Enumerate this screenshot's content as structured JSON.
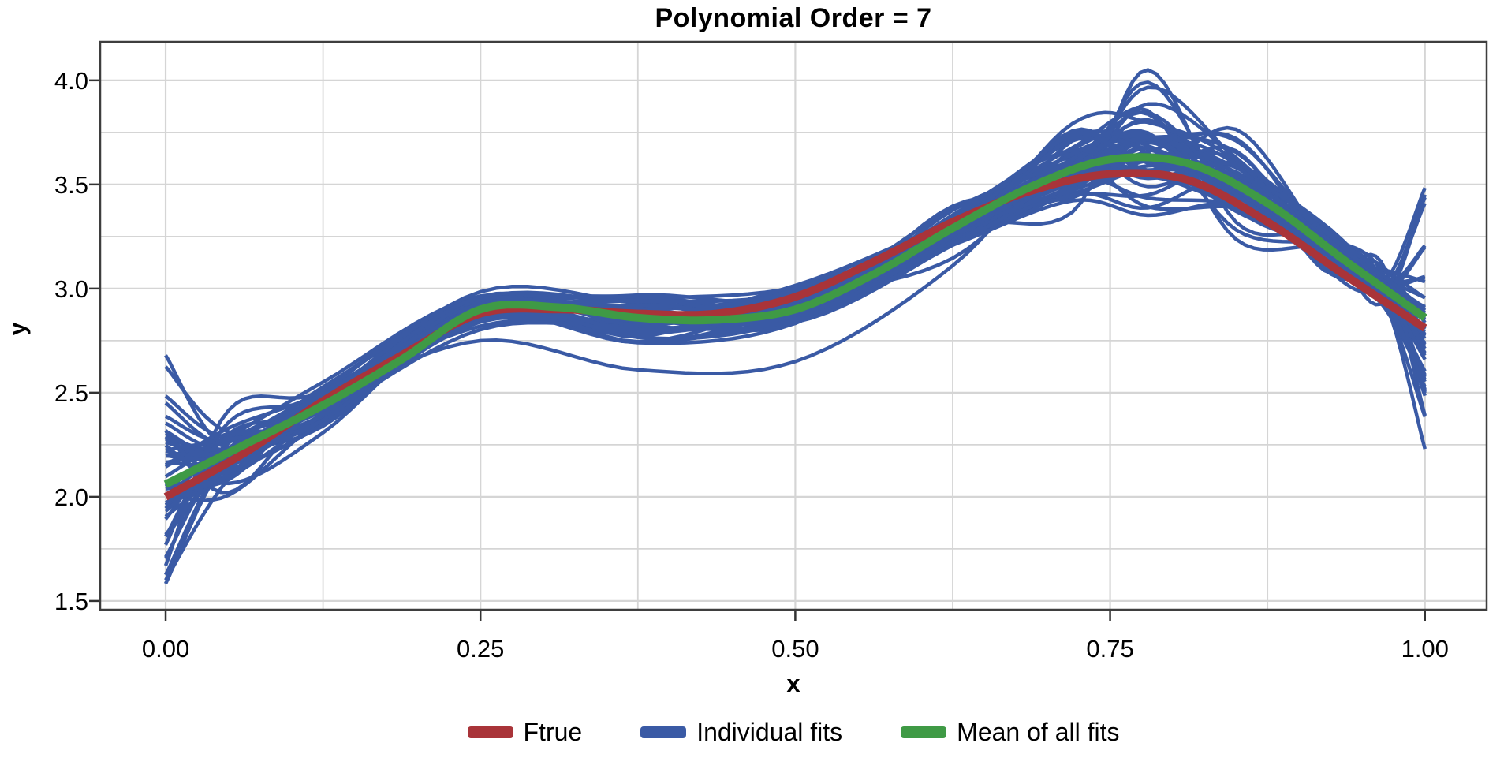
{
  "figure": {
    "title": "Polynomial Order = 7",
    "x_axis_label": "x",
    "y_axis_label": "y"
  },
  "chart_data": {
    "type": "line",
    "title": "Polynomial Order = 7",
    "xlabel": "x",
    "ylabel": "y",
    "xlim": [
      -0.052,
      1.049
    ],
    "ylim": [
      1.458,
      4.185
    ],
    "grid": true,
    "grid_color": "#D5D5D5",
    "panel_border_color": "#3E3E3E",
    "tick_color": "#333333",
    "text_color": "#000000",
    "legend_position": "bottom-center",
    "x_ticks": {
      "values": [
        0,
        0.25,
        0.5,
        0.75,
        1.0
      ],
      "labels": [
        "0.00",
        "0.25",
        "0.50",
        "0.75",
        "1.00"
      ]
    },
    "y_ticks": {
      "values": [
        1.5,
        2.0,
        2.5,
        3.0,
        3.5,
        4.0
      ],
      "labels": [
        "1.5",
        "2.0",
        "2.5",
        "3.0",
        "3.5",
        "4.0"
      ]
    },
    "x_minor_gridlines": [
      0.125,
      0.375,
      0.625,
      0.875
    ],
    "y_minor_gridlines": [
      1.75,
      2.25,
      2.75,
      3.25,
      3.75
    ],
    "x_samples": [
      0,
      0.0625,
      0.125,
      0.1875,
      0.25,
      0.3125,
      0.375,
      0.4375,
      0.5,
      0.5625,
      0.625,
      0.6875,
      0.75,
      0.8125,
      0.875,
      0.9375,
      1.0
    ],
    "series": [
      {
        "name": "Ftrue",
        "color": "#A93439",
        "line_width": 10,
        "values": [
          2.0,
          2.21,
          2.46,
          2.68,
          2.88,
          2.9,
          2.88,
          2.88,
          2.96,
          3.13,
          3.32,
          3.47,
          3.55,
          3.52,
          3.32,
          3.06,
          2.81
        ]
      },
      {
        "name": "Mean of all fits",
        "color": "#3F9A45",
        "line_width": 10,
        "values": [
          2.06,
          2.25,
          2.44,
          2.66,
          2.9,
          2.91,
          2.86,
          2.85,
          2.9,
          3.07,
          3.29,
          3.49,
          3.62,
          3.6,
          3.41,
          3.13,
          2.86
        ]
      },
      {
        "name": "Individual fits",
        "color": "#3A5AA5",
        "line_width": 4.5,
        "count": 50,
        "seed": 20407,
        "spread_control_x": [
          0,
          0.05,
          0.125,
          0.25,
          0.375,
          0.5,
          0.625,
          0.72,
          0.78,
          0.85,
          0.92,
          0.965,
          1.0
        ],
        "spread_control_sd": [
          0.24,
          0.085,
          0.055,
          0.05,
          0.05,
          0.055,
          0.06,
          0.1,
          0.14,
          0.11,
          0.065,
          0.05,
          0.26
        ],
        "sd_clamp": 2.4,
        "outliers": [
          {
            "curve": 4,
            "point": 8,
            "value": 0.42
          },
          {
            "curve": 9,
            "point": 8,
            "value": 0.36
          },
          {
            "curve": 17,
            "point": 3,
            "value": -0.15
          },
          {
            "curve": 17,
            "point": 4,
            "value": -0.25
          },
          {
            "curve": 17,
            "point": 5,
            "value": -0.25
          },
          {
            "curve": 17,
            "point": 6,
            "value": -0.18
          },
          {
            "curve": 23,
            "point": 0,
            "value": 0.62
          },
          {
            "curve": 31,
            "point": 0,
            "value": -0.46
          },
          {
            "curve": 40,
            "point": 12,
            "value": 0.55
          },
          {
            "curve": 44,
            "point": 12,
            "value": -0.63
          }
        ]
      }
    ],
    "legend": [
      {
        "label": "Ftrue",
        "color": "#A93439"
      },
      {
        "label": "Individual fits",
        "color": "#3A5AA5"
      },
      {
        "label": "Mean of all fits",
        "color": "#3F9A45"
      }
    ]
  }
}
